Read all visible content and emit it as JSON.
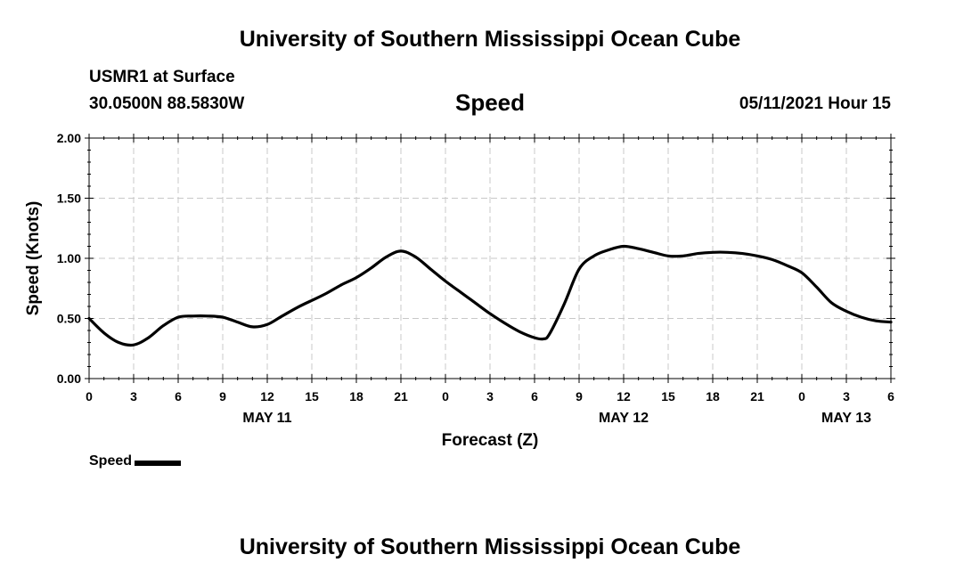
{
  "header": {
    "title": "University of Southern Mississippi Ocean Cube",
    "station": "USMR1 at Surface",
    "coords": "30.0500N  88.5830W",
    "chart_title": "Speed",
    "datetime": "05/11/2021 Hour 15"
  },
  "footer": {
    "title": "University of Southern Mississippi Ocean Cube"
  },
  "legend": {
    "label": "Speed"
  },
  "chart_data": {
    "type": "line",
    "title": "Speed",
    "xlabel": "Forecast (Z)",
    "ylabel": "Speed (Knots)",
    "ylim": [
      0,
      2
    ],
    "xlim": [
      0,
      54
    ],
    "grid": true,
    "legend_position": "bottom-left",
    "y_ticks": [
      "0.00",
      "0.50",
      "1.00",
      "1.50",
      "2.00"
    ],
    "x_tick_labels": [
      "0",
      "3",
      "6",
      "9",
      "12",
      "15",
      "18",
      "21",
      "0",
      "3",
      "6",
      "9",
      "12",
      "15",
      "18",
      "21",
      "0",
      "3",
      "6"
    ],
    "date_labels": [
      {
        "hour": 12,
        "label": "MAY 11"
      },
      {
        "hour": 36,
        "label": "MAY 12"
      },
      {
        "hour": 51,
        "label": "MAY 13"
      }
    ],
    "series": [
      {
        "name": "Speed",
        "color": "#000000",
        "x": [
          0,
          1,
          2,
          3,
          4,
          5,
          6,
          7,
          8,
          9,
          10,
          11,
          12,
          13,
          14,
          15,
          16,
          17,
          18,
          19,
          20,
          21,
          22,
          23,
          24,
          25,
          26,
          27,
          28,
          29,
          30,
          30.6,
          31,
          32,
          33,
          34,
          35,
          36,
          37,
          38,
          39,
          40,
          41,
          42,
          43,
          44,
          45,
          46,
          47,
          48,
          49,
          50,
          51,
          52,
          53,
          54
        ],
        "values": [
          0.5,
          0.38,
          0.3,
          0.28,
          0.34,
          0.44,
          0.51,
          0.52,
          0.52,
          0.51,
          0.47,
          0.43,
          0.45,
          0.52,
          0.59,
          0.65,
          0.71,
          0.78,
          0.84,
          0.92,
          1.01,
          1.06,
          1.01,
          0.91,
          0.81,
          0.72,
          0.63,
          0.54,
          0.46,
          0.39,
          0.34,
          0.33,
          0.37,
          0.62,
          0.91,
          1.02,
          1.07,
          1.1,
          1.08,
          1.05,
          1.02,
          1.02,
          1.04,
          1.05,
          1.05,
          1.04,
          1.02,
          0.99,
          0.94,
          0.88,
          0.76,
          0.63,
          0.56,
          0.51,
          0.48,
          0.47
        ]
      }
    ]
  }
}
